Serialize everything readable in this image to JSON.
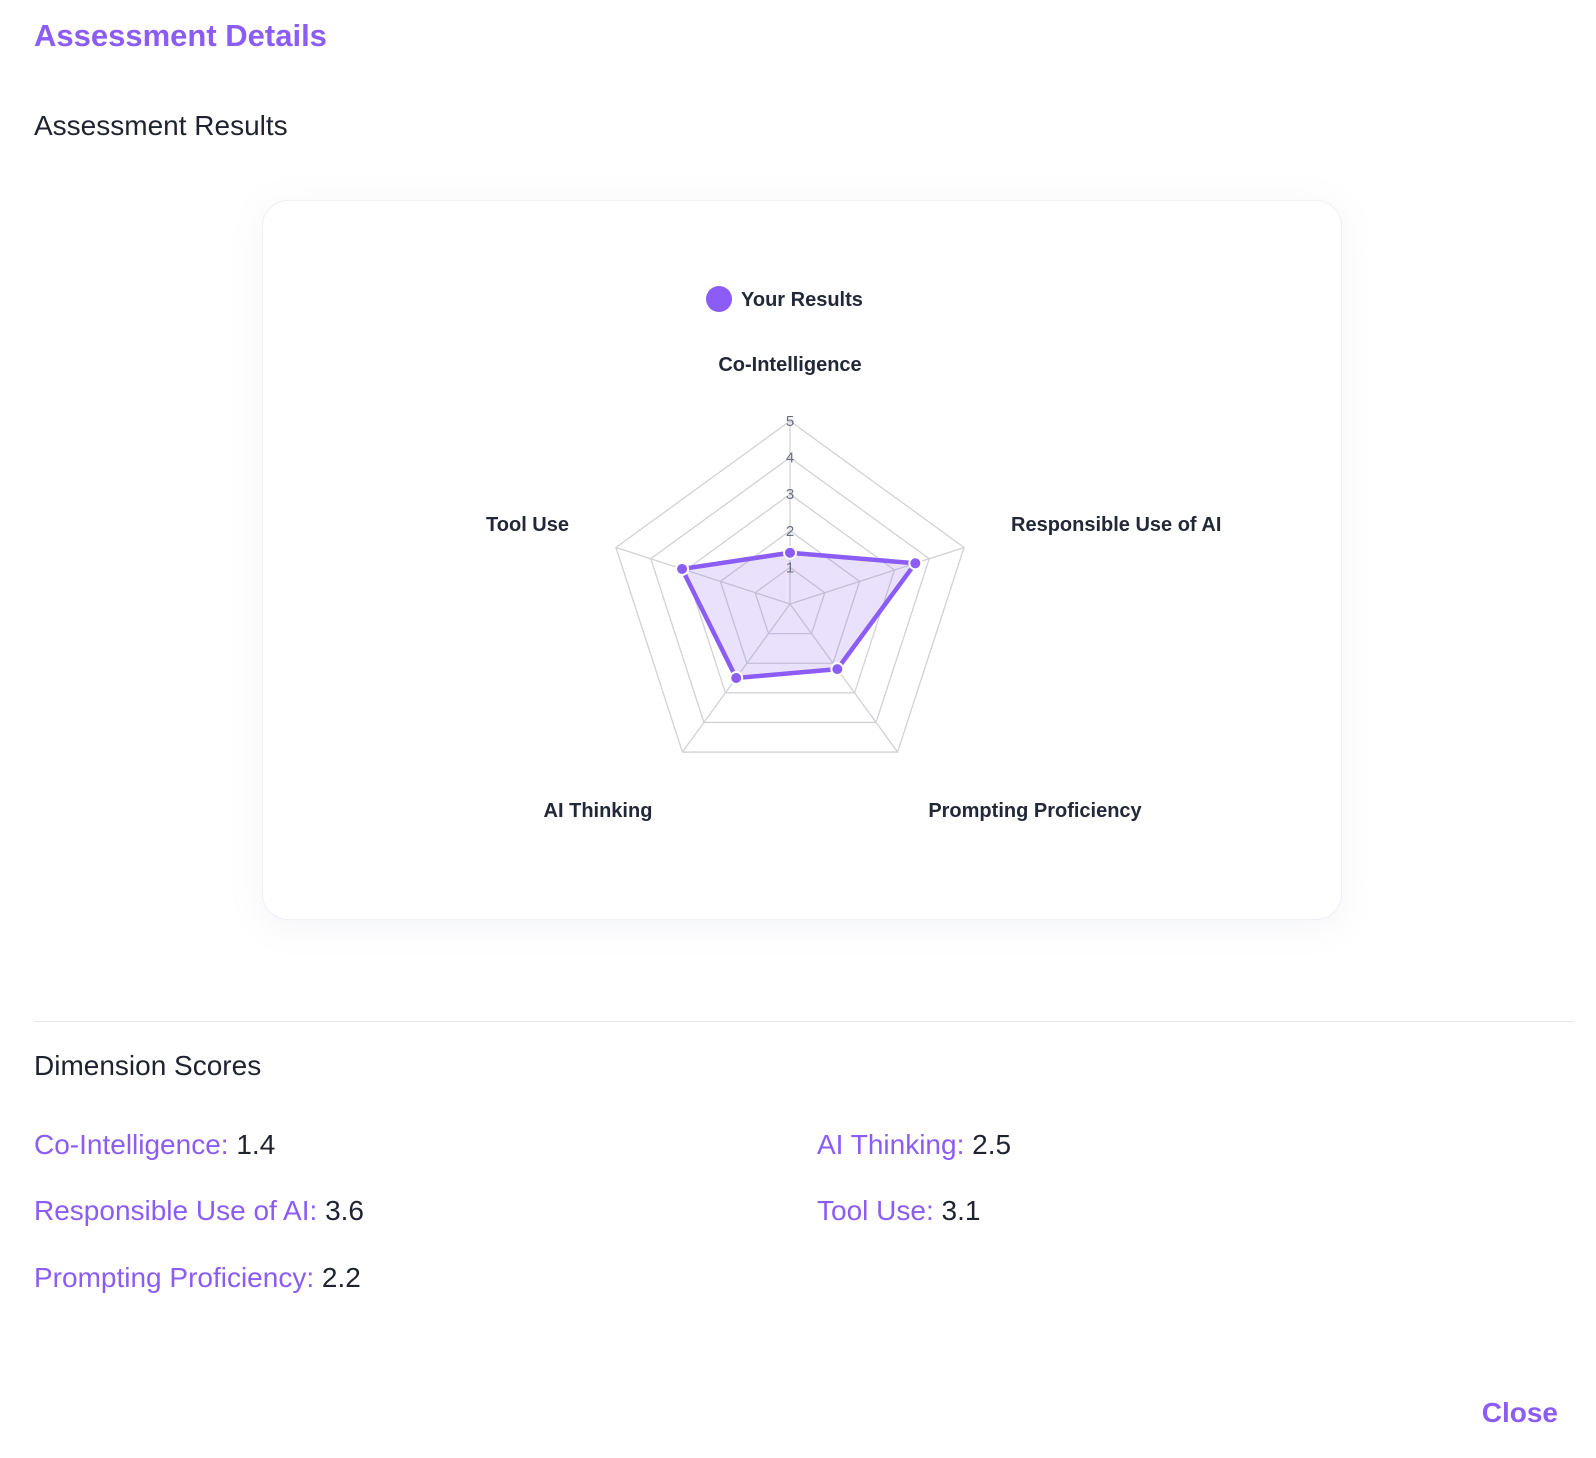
{
  "dialog": {
    "title": "Assessment Details",
    "close_label": "Close"
  },
  "results": {
    "section_title": "Assessment Results"
  },
  "chart_data": {
    "type": "radar",
    "legend": {
      "entries": [
        "Your Results"
      ],
      "placement": "top-center"
    },
    "axes": [
      "Co-Intelligence",
      "Responsible Use of AI",
      "Prompting Proficiency",
      "AI Thinking",
      "Tool Use"
    ],
    "r_range": [
      0,
      5
    ],
    "ticks": [
      "1",
      "2",
      "3",
      "4",
      "5"
    ],
    "series": [
      {
        "name": "Your Results",
        "values": [
          1.4,
          3.6,
          2.2,
          2.5,
          3.1
        ]
      }
    ],
    "colors": {
      "line": "#8b5cf6",
      "fill": "rgba(139,92,246,0.18)",
      "grid": "#d0d2d6"
    },
    "grid": true
  },
  "scores": {
    "section_title": "Dimension Scores",
    "items": [
      {
        "label": "Co-Intelligence:",
        "value": "1.4"
      },
      {
        "label": "AI Thinking:",
        "value": "2.5"
      },
      {
        "label": "Responsible Use of AI:",
        "value": "3.6"
      },
      {
        "label": "Tool Use:",
        "value": "3.1"
      },
      {
        "label": "Prompting Proficiency:",
        "value": "2.2"
      }
    ]
  },
  "colors": {
    "accent": "#8b5cf6",
    "text": "#1f2330"
  }
}
